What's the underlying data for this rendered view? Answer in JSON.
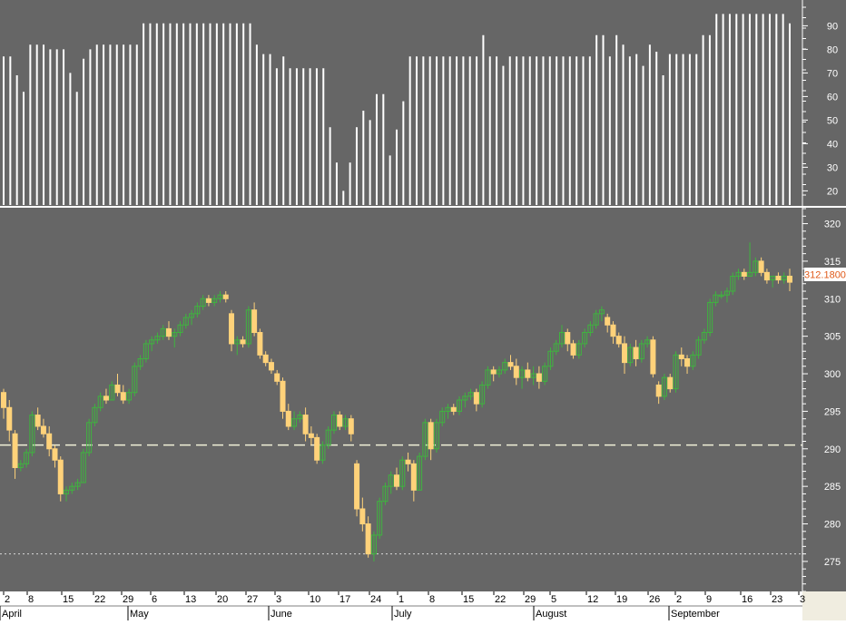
{
  "colors": {
    "background": "#666666",
    "up_candle": "#3fb43f",
    "down_candle": "#ffd27a",
    "volume_bars": "#ffffff",
    "axis_text": "#ffffff",
    "price_tag_bg": "#ffffff",
    "price_tag_text": "#e05a1a",
    "reference_line": "#f0f0d8",
    "support_line": "#d8d8d8",
    "date_bar_bg": "#ffffff",
    "corner_box": "#f0ede0"
  },
  "price_tag": "312.1800",
  "chart_data": [
    {
      "type": "bar",
      "panel": "upper",
      "ylim": [
        14,
        99
      ],
      "yticks": [
        20,
        30,
        40,
        50,
        60,
        70,
        80,
        90
      ],
      "values": [
        77,
        77,
        69,
        62,
        82,
        82,
        82,
        80,
        80,
        80,
        70,
        62,
        76,
        80,
        82,
        82,
        82,
        82,
        82,
        82,
        82,
        91,
        91,
        91,
        91,
        91,
        91,
        91,
        91,
        91,
        91,
        91,
        91,
        91,
        91,
        91,
        91,
        91,
        82,
        78,
        78,
        72,
        77,
        72,
        72,
        72,
        72,
        72,
        72,
        47,
        32,
        20,
        32,
        47,
        54,
        50,
        61,
        61,
        35,
        46,
        58,
        77,
        77,
        77,
        77,
        77,
        77,
        77,
        77,
        77,
        77,
        77,
        86,
        77,
        77,
        73,
        77,
        77,
        77,
        77,
        77,
        77,
        77,
        77,
        77,
        77,
        77,
        77,
        77,
        86,
        86,
        77,
        86,
        82,
        77,
        78,
        73,
        82,
        79,
        69,
        78,
        78,
        78,
        78,
        78,
        86,
        86,
        95,
        95,
        95,
        95,
        95,
        95,
        95,
        95,
        95,
        95,
        95,
        91
      ]
    },
    {
      "type": "candlestick",
      "panel": "lower",
      "ylim": [
        271,
        322
      ],
      "yticks": [
        275,
        280,
        285,
        290,
        295,
        300,
        305,
        310,
        315,
        320
      ],
      "reference_line": 290.5,
      "support_line": 276,
      "ohlc": [
        [
          297.5,
          298,
          294,
          295.5
        ],
        [
          295.5,
          296.5,
          291,
          292.5
        ],
        [
          292,
          292.5,
          286,
          287.5
        ],
        [
          287.5,
          288.5,
          287,
          288
        ],
        [
          288,
          290,
          287.5,
          289.5
        ],
        [
          289.5,
          295,
          289,
          294.5
        ],
        [
          294.5,
          295.5,
          292.5,
          293
        ],
        [
          293,
          294,
          291.5,
          292
        ],
        [
          292,
          293,
          289,
          290
        ],
        [
          290,
          290.5,
          287.5,
          288.5
        ],
        [
          288.5,
          289,
          283,
          284
        ],
        [
          284,
          285,
          283,
          284.5
        ],
        [
          284.5,
          285.5,
          284,
          285
        ],
        [
          285,
          286,
          284.5,
          285.5
        ],
        [
          285.5,
          290,
          285.5,
          289.5
        ],
        [
          289.5,
          294,
          289,
          293.5
        ],
        [
          293.5,
          296,
          293,
          295.5
        ],
        [
          295.5,
          297.5,
          295,
          297
        ],
        [
          297,
          298,
          296,
          296.5
        ],
        [
          296.5,
          299,
          296.5,
          298.5
        ],
        [
          298.5,
          300,
          297,
          297.5
        ],
        [
          297.5,
          298.5,
          296,
          296.5
        ],
        [
          296.5,
          298,
          296,
          297.5
        ],
        [
          297.5,
          301.5,
          297,
          301
        ],
        [
          301,
          302.5,
          300.5,
          302
        ],
        [
          302,
          304.5,
          301.5,
          304
        ],
        [
          304,
          305,
          303,
          304.5
        ],
        [
          304.5,
          305.5,
          304,
          305
        ],
        [
          305,
          306.5,
          304.5,
          306
        ],
        [
          306,
          307,
          304.5,
          305
        ],
        [
          305,
          306,
          303.5,
          305.5
        ],
        [
          305.5,
          307,
          305,
          306.5
        ],
        [
          306.5,
          308,
          306,
          307.5
        ],
        [
          307.5,
          308.5,
          306.5,
          308
        ],
        [
          308,
          309.5,
          307.5,
          309
        ],
        [
          309,
          310.5,
          308.5,
          310
        ],
        [
          310,
          310.5,
          309,
          309.5
        ],
        [
          309.5,
          310.5,
          309,
          310
        ],
        [
          310,
          311,
          309.5,
          310.5
        ],
        [
          310.5,
          311,
          309.5,
          310
        ],
        [
          308,
          308.5,
          303,
          304
        ],
        [
          304,
          305,
          302.5,
          304.5
        ],
        [
          304.5,
          305,
          303.5,
          304
        ],
        [
          304,
          309,
          303.5,
          308.5
        ],
        [
          308.5,
          309.5,
          305,
          305.5
        ],
        [
          305.5,
          306,
          302,
          302.5
        ],
        [
          302.5,
          303,
          301,
          301.5
        ],
        [
          301.5,
          302,
          300,
          300.5
        ],
        [
          300,
          300.5,
          298.5,
          299
        ],
        [
          299,
          299.5,
          294,
          295
        ],
        [
          295,
          296,
          292.5,
          293
        ],
        [
          293,
          295,
          292.5,
          294
        ],
        [
          294,
          295,
          293.5,
          294.5
        ],
        [
          294.5,
          295.5,
          291,
          292
        ],
        [
          292,
          293,
          290.5,
          291.5
        ],
        [
          291.5,
          292,
          288,
          288.5
        ],
        [
          288.5,
          291,
          288,
          290.5
        ],
        [
          290.5,
          293,
          290,
          292.5
        ],
        [
          292.5,
          295,
          292,
          294.5
        ],
        [
          294.5,
          295,
          292.5,
          293
        ],
        [
          293,
          294.5,
          292.5,
          294
        ],
        [
          294,
          294.5,
          291,
          292
        ],
        [
          288,
          288.5,
          281,
          282
        ],
        [
          282,
          283.5,
          279,
          280
        ],
        [
          280,
          281,
          275.5,
          276
        ],
        [
          276,
          279,
          275,
          278.5
        ],
        [
          278.5,
          283.5,
          278,
          283
        ],
        [
          283,
          285.5,
          282.5,
          285
        ],
        [
          285,
          287,
          284,
          286.5
        ],
        [
          286.5,
          287.5,
          284.5,
          285
        ],
        [
          285,
          289,
          284.5,
          288.5
        ],
        [
          288.5,
          289.5,
          287,
          288
        ],
        [
          288,
          288.5,
          283,
          284.5
        ],
        [
          284.5,
          289.5,
          284.5,
          289
        ],
        [
          289,
          294,
          288.5,
          293.5
        ],
        [
          293.5,
          294,
          288.5,
          290
        ],
        [
          290,
          294,
          289.5,
          293.5
        ],
        [
          293.5,
          295.5,
          293,
          295
        ],
        [
          295,
          296,
          294,
          295.5
        ],
        [
          295.5,
          296,
          294.5,
          295
        ],
        [
          295,
          297,
          294.5,
          296.5
        ],
        [
          296.5,
          297.5,
          295.5,
          297
        ],
        [
          297,
          298,
          296.5,
          297.5
        ],
        [
          297.5,
          298,
          295,
          296
        ],
        [
          296,
          299,
          295.5,
          298.5
        ],
        [
          298.5,
          301,
          298,
          300.5
        ],
        [
          300.5,
          301,
          299,
          300
        ],
        [
          300,
          301,
          299.5,
          300.5
        ],
        [
          300.5,
          302,
          300,
          301.5
        ],
        [
          301.5,
          302.5,
          300.5,
          301
        ],
        [
          301,
          302,
          298.5,
          299.5
        ],
        [
          299.5,
          301,
          298,
          300.5
        ],
        [
          300.5,
          301.5,
          299,
          299.5
        ],
        [
          299.5,
          301,
          298.5,
          300
        ],
        [
          300,
          301,
          298,
          299
        ],
        [
          299,
          301.5,
          298.5,
          301
        ],
        [
          301,
          303.5,
          300.5,
          303
        ],
        [
          303,
          304.5,
          302.5,
          304
        ],
        [
          304,
          306.5,
          303.5,
          305.5
        ],
        [
          305.5,
          306,
          303,
          304
        ],
        [
          304,
          304.5,
          302,
          302.5
        ],
        [
          302.5,
          304.5,
          302,
          304
        ],
        [
          304,
          306,
          303.5,
          305.5
        ],
        [
          305.5,
          307,
          305,
          306.5
        ],
        [
          306.5,
          308.5,
          306,
          308
        ],
        [
          308,
          309,
          307,
          308.5
        ],
        [
          307.5,
          308,
          305.5,
          306.5
        ],
        [
          306.5,
          307,
          304,
          305
        ],
        [
          305,
          305.5,
          303.5,
          304
        ],
        [
          304,
          305,
          300,
          301.5
        ],
        [
          301.5,
          304,
          301,
          303.5
        ],
        [
          303.5,
          304.5,
          301,
          302
        ],
        [
          302,
          304.5,
          301.5,
          304
        ],
        [
          304,
          305,
          303.5,
          304.5
        ],
        [
          304.5,
          305,
          299.5,
          300
        ],
        [
          298.5,
          299,
          296,
          297
        ],
        [
          297,
          300,
          296.5,
          299.5
        ],
        [
          299.5,
          300,
          297.5,
          298
        ],
        [
          298,
          303,
          297.5,
          302.5
        ],
        [
          302.5,
          303.5,
          301,
          302
        ],
        [
          302,
          302.5,
          300,
          301
        ],
        [
          301,
          303,
          300.5,
          302.5
        ],
        [
          302.5,
          305,
          302,
          304.5
        ],
        [
          304.5,
          306,
          304,
          305.5
        ],
        [
          305.5,
          310,
          305,
          309.5
        ],
        [
          309.5,
          311,
          309,
          310.5
        ],
        [
          310.5,
          311,
          310,
          310.5
        ],
        [
          310.5,
          311.5,
          309.5,
          311
        ],
        [
          311,
          313.5,
          310.5,
          313
        ],
        [
          313,
          314,
          312.5,
          313.5
        ],
        [
          313.5,
          314,
          312.5,
          313
        ],
        [
          313,
          317.5,
          313,
          313.5
        ],
        [
          313.5,
          315.5,
          313,
          315
        ],
        [
          315,
          315.5,
          313,
          313.5
        ],
        [
          313.5,
          314,
          312,
          312.5
        ],
        [
          312.5,
          313,
          311.5,
          313
        ],
        [
          313,
          313.5,
          312,
          312.5
        ],
        [
          312.5,
          313.5,
          312,
          313
        ],
        [
          313,
          314,
          311,
          312.2
        ]
      ]
    }
  ],
  "x_axis": {
    "day_ticks": [
      "2",
      "8",
      "15",
      "22",
      "29",
      "6",
      "13",
      "20",
      "27",
      "3",
      "10",
      "17",
      "24",
      "1",
      "8",
      "15",
      "22",
      "29",
      "5",
      "12",
      "19",
      "26",
      "2",
      "9",
      "16",
      "23",
      "3"
    ],
    "months": [
      "April",
      "May",
      "June",
      "July",
      "August",
      "September"
    ]
  }
}
